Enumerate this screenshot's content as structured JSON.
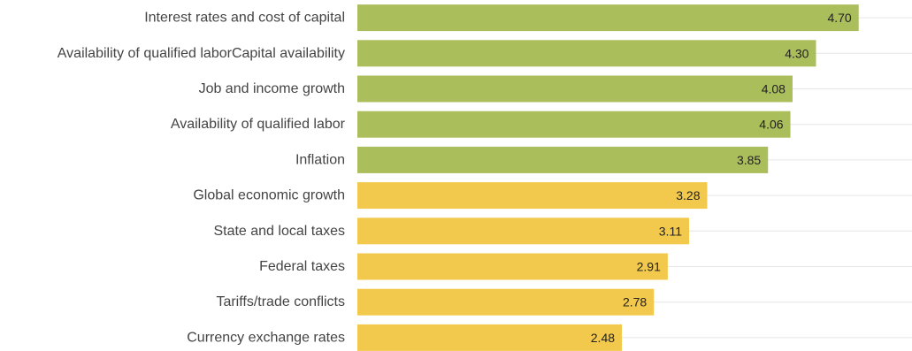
{
  "chart_data": {
    "type": "bar",
    "orientation": "horizontal",
    "title": "",
    "xlabel": "",
    "ylabel": "",
    "xlim": [
      0,
      5.2
    ],
    "grid": true,
    "categories": [
      "Interest rates and cost of capital",
      "Availability of qualified laborCapital availability",
      "Job and income growth",
      "Availability of qualified labor",
      "Inflation",
      "Global economic growth",
      "State and local taxes",
      "Federal taxes",
      "Tariffs/trade conflicts",
      "Currency exchange rates"
    ],
    "values": [
      4.7,
      4.3,
      4.08,
      4.06,
      3.85,
      3.28,
      3.11,
      2.91,
      2.78,
      2.48
    ],
    "value_labels": [
      "4.70",
      "4.30",
      "4.08",
      "4.06",
      "3.85",
      "3.28",
      "3.11",
      "2.91",
      "2.78",
      "2.48"
    ],
    "bar_colors": [
      "#abbe5c",
      "#abbe5c",
      "#abbe5c",
      "#abbe5c",
      "#abbe5c",
      "#f2c94c",
      "#f2c94c",
      "#f2c94c",
      "#f2c94c",
      "#f2c94c"
    ]
  }
}
